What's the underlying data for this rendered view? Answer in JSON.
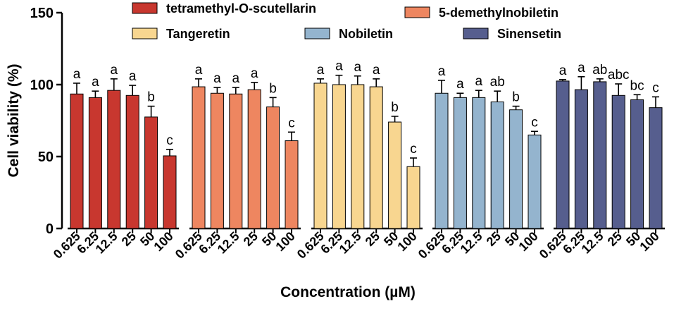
{
  "chart_data": {
    "type": "bar",
    "ylabel": "Cell viability (%)",
    "xlabel": "Concentration (µM)",
    "ylim": [
      0,
      150
    ],
    "yticks": [
      "0",
      "50",
      "100",
      "150"
    ],
    "concentrations": [
      "0.625",
      "6.25",
      "12.5",
      "25",
      "50",
      "100"
    ],
    "series": [
      {
        "name": "tetramethyl-O-scutellarin",
        "color": "#C8372F",
        "values": [
          93.5,
          91,
          96,
          92.5,
          77.5,
          50.5
        ],
        "errors": [
          7.5,
          4.5,
          8,
          7,
          7.5,
          4.5
        ],
        "sig": [
          "a",
          "a",
          "a",
          "a",
          "b",
          "c"
        ]
      },
      {
        "name": "5-demethylnobiletin",
        "color": "#EE8660",
        "values": [
          98.5,
          94,
          93.5,
          96.5,
          84.5,
          61
        ],
        "errors": [
          5.5,
          4,
          4.5,
          5,
          6.5,
          6
        ],
        "sig": [
          "a",
          "a",
          "a",
          "a",
          "b",
          "c"
        ]
      },
      {
        "name": "Tangeretin",
        "color": "#F8D690",
        "values": [
          101,
          100,
          100,
          98.5,
          74,
          43
        ],
        "errors": [
          3,
          6.5,
          6,
          5.5,
          4,
          6
        ],
        "sig": [
          "a",
          "a",
          "a",
          "a",
          "b",
          "c"
        ]
      },
      {
        "name": "Nobiletin",
        "color": "#94B4CE",
        "values": [
          94,
          91,
          91,
          88,
          82.5,
          65
        ],
        "errors": [
          9,
          3,
          5,
          7.5,
          2.5,
          2.5
        ],
        "sig": [
          "a",
          "a",
          "a",
          "ab",
          "b",
          "c"
        ]
      },
      {
        "name": "Sinensetin",
        "color": "#565E8E",
        "values": [
          102.5,
          96.5,
          102,
          92.5,
          89.5,
          84
        ],
        "errors": [
          1,
          9,
          2,
          8,
          3.5,
          7.5
        ],
        "sig": [
          "a",
          "a",
          "ab",
          "abc",
          "bc",
          "c"
        ]
      }
    ]
  }
}
